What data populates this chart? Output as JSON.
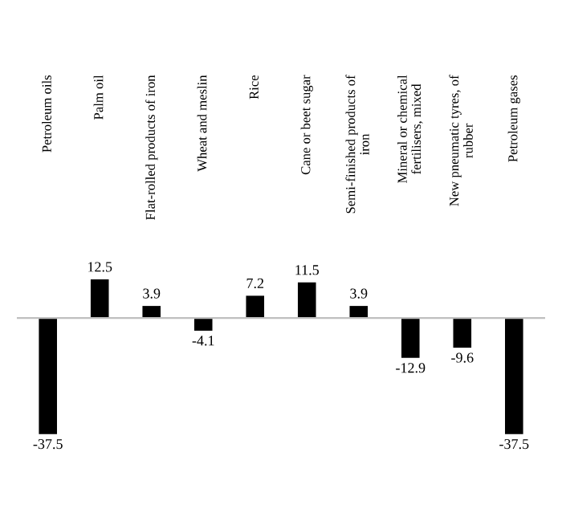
{
  "chart_data": {
    "type": "bar",
    "categories": [
      "Petroleum oils",
      "Palm oil",
      "Flat-rolled products of iron",
      "Wheat and meslin",
      "Rice",
      "Cane or beet sugar",
      "Semi-finished products of\niron",
      "Mineral or chemical\nfertilisers, mixed",
      "New pneumatic tyres, of\nrubber",
      "Petroleum gases"
    ],
    "values": [
      -37.5,
      12.5,
      3.9,
      -4.1,
      7.2,
      11.5,
      3.9,
      -12.9,
      -9.6,
      -37.5
    ],
    "color": "#000000",
    "data_labels": true,
    "legend": false
  }
}
